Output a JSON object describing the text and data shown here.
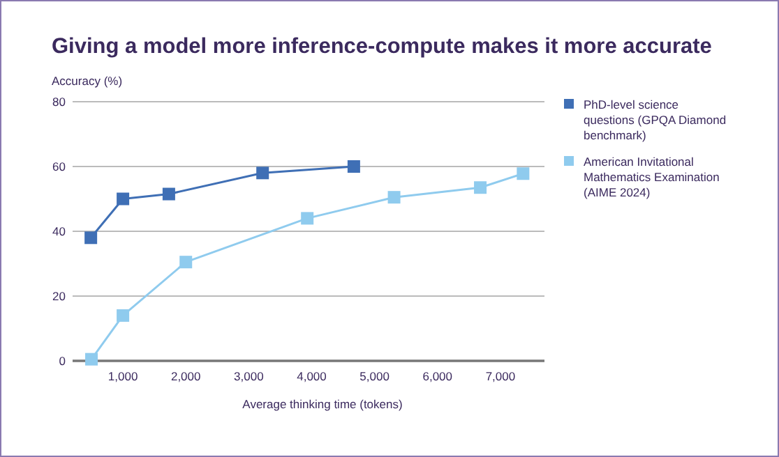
{
  "chart_data": {
    "type": "line",
    "title": "Giving a model more inference-compute makes it more accurate",
    "xlabel": "Average thinking time (tokens)",
    "ylabel": "Accuracy (%)",
    "xlim": [
      200,
      7700
    ],
    "xticks": [
      {
        "value": 1000,
        "label": "1,000"
      },
      {
        "value": 2000,
        "label": "2,000"
      },
      {
        "value": 3000,
        "label": "3,000"
      },
      {
        "value": 4000,
        "label": "4,000"
      },
      {
        "value": 5000,
        "label": "5,000"
      },
      {
        "value": 6000,
        "label": "6,000"
      },
      {
        "value": 7000,
        "label": "7,000"
      }
    ],
    "ylim": [
      0,
      80
    ],
    "yticks": [
      0,
      20,
      40,
      60,
      80
    ],
    "grid": "y",
    "legend": "right",
    "marker": "square",
    "line_style": "solid",
    "series": [
      {
        "name": "PhD-level science questions (GPQA Diamond benchmark)",
        "color": "#3f6fb5",
        "x": [
          490,
          1000,
          1730,
          3220,
          4670
        ],
        "values": [
          38,
          50,
          51.5,
          58,
          60
        ]
      },
      {
        "name": "American Invitational Mathematics Examination (AIME 2024)",
        "color": "#8fcbee",
        "x": [
          500,
          1000,
          2000,
          3930,
          5310,
          6680,
          7360
        ],
        "values": [
          0.5,
          14,
          30.5,
          44,
          50.5,
          53.5,
          57.8
        ]
      }
    ]
  }
}
